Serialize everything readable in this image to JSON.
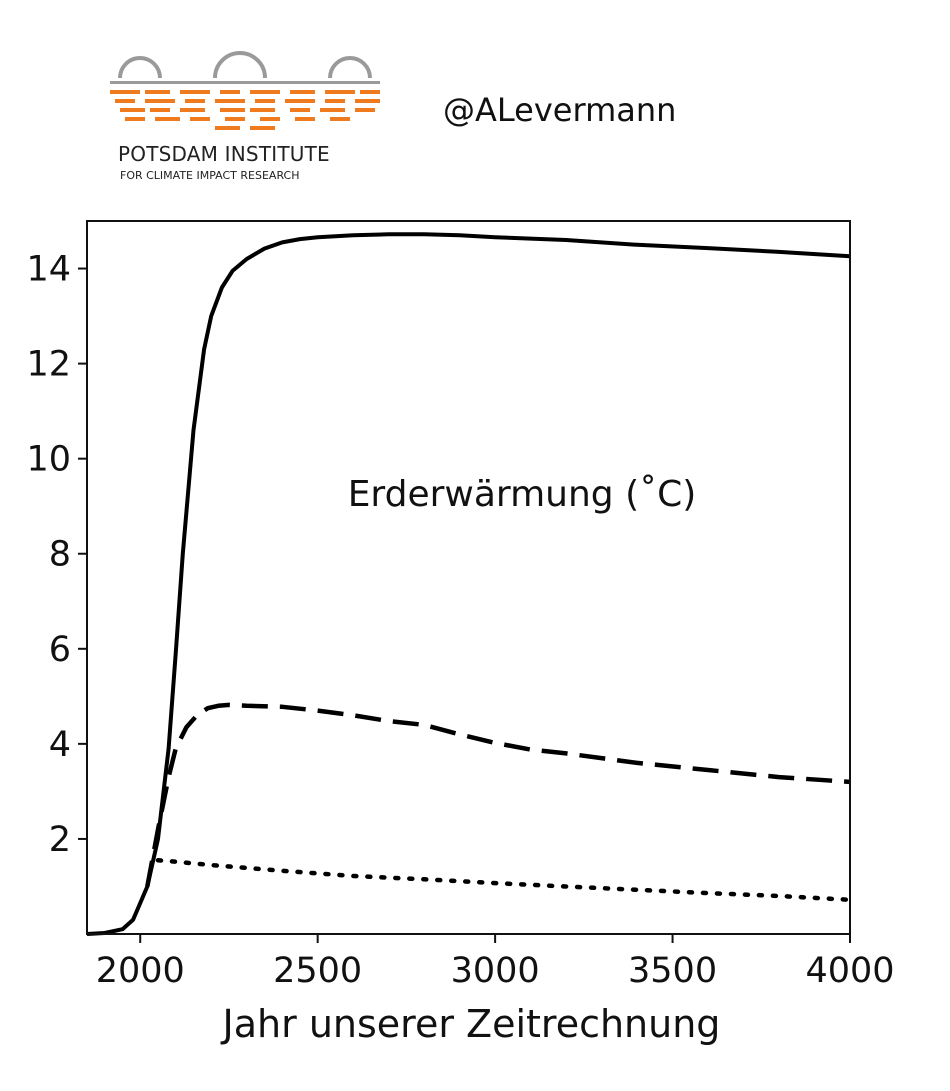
{
  "logo": {
    "name": "POTSDAM INSTITUTE",
    "subtitle": "FOR CLIMATE IMPACT RESEARCH",
    "colors": {
      "orange": "#f07a1e",
      "gray": "#9a9a9a"
    }
  },
  "handle": "@ALevermann",
  "chart_data": {
    "type": "line",
    "title": "",
    "xlabel": "Jahr unserer Zeitrechnung",
    "ylabel": "",
    "xlim": [
      1850,
      4000
    ],
    "ylim": [
      0,
      15
    ],
    "xticks": [
      2000,
      2500,
      3000,
      3500,
      4000
    ],
    "yticks": [
      2,
      4,
      6,
      8,
      10,
      12,
      14
    ],
    "grid": false,
    "annotation": "Erderwärmung (˚C)",
    "series": [
      {
        "style": "solid",
        "color": "#000000",
        "x": [
          1850,
          1900,
          1950,
          1980,
          2000,
          2020,
          2050,
          2080,
          2100,
          2120,
          2150,
          2180,
          2200,
          2230,
          2260,
          2300,
          2350,
          2400,
          2450,
          2500,
          2600,
          2700,
          2800,
          2900,
          3000,
          3200,
          3400,
          3600,
          3800,
          4000
        ],
        "y": [
          0.0,
          0.02,
          0.1,
          0.3,
          0.65,
          1.0,
          2.0,
          3.9,
          5.9,
          8.0,
          10.6,
          12.3,
          13.0,
          13.6,
          13.95,
          14.2,
          14.42,
          14.55,
          14.62,
          14.66,
          14.7,
          14.72,
          14.72,
          14.7,
          14.66,
          14.6,
          14.5,
          14.43,
          14.35,
          14.26
        ]
      },
      {
        "style": "dashed",
        "color": "#000000",
        "x": [
          2020,
          2050,
          2080,
          2100,
          2130,
          2160,
          2190,
          2220,
          2250,
          2300,
          2400,
          2500,
          2600,
          2700,
          2800,
          2900,
          3000,
          3100,
          3200,
          3400,
          3600,
          3800,
          4000
        ],
        "y": [
          1.0,
          2.2,
          3.3,
          3.9,
          4.35,
          4.6,
          4.75,
          4.8,
          4.82,
          4.8,
          4.78,
          4.7,
          4.6,
          4.48,
          4.4,
          4.2,
          4.02,
          3.88,
          3.8,
          3.6,
          3.45,
          3.3,
          3.2
        ]
      },
      {
        "style": "dotted",
        "color": "#000000",
        "x": [
          2050,
          2100,
          2200,
          2400,
          2600,
          2800,
          3000,
          3200,
          3400,
          3600,
          3800,
          4000
        ],
        "y": [
          1.55,
          1.52,
          1.45,
          1.33,
          1.22,
          1.15,
          1.07,
          1.0,
          0.93,
          0.86,
          0.8,
          0.72
        ]
      }
    ]
  }
}
